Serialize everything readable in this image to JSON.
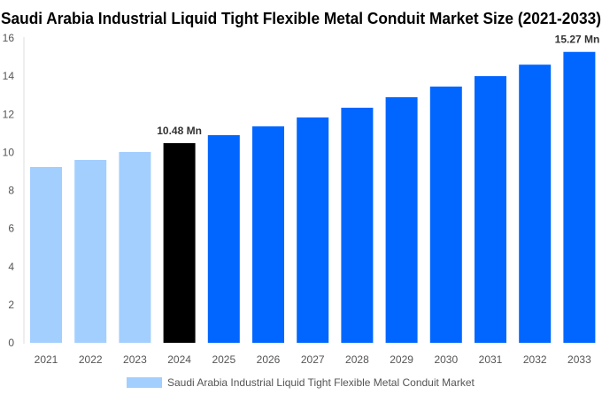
{
  "chart_data": {
    "type": "bar",
    "title": "Saudi Arabia Industrial Liquid Tight Flexible Metal Conduit Market Size (2021-2033)",
    "categories": [
      "2021",
      "2022",
      "2023",
      "2024",
      "2025",
      "2026",
      "2027",
      "2028",
      "2029",
      "2030",
      "2031",
      "2032",
      "2033"
    ],
    "values": [
      9.23,
      9.6,
      10.02,
      10.48,
      10.9,
      11.36,
      11.83,
      12.34,
      12.89,
      13.45,
      14.0,
      14.6,
      15.27
    ],
    "colors": [
      "#a3cfff",
      "#a3cfff",
      "#a3cfff",
      "#000000",
      "#0066ff",
      "#0066ff",
      "#0066ff",
      "#0066ff",
      "#0066ff",
      "#0066ff",
      "#0066ff",
      "#0066ff",
      "#0066ff"
    ],
    "data_labels": {
      "3": "10.48 Mn",
      "12": "15.27 Mn"
    },
    "ylim": [
      0,
      16
    ],
    "yticks": [
      0,
      2,
      4,
      6,
      8,
      10,
      12,
      14,
      16
    ],
    "grid": false,
    "legend": {
      "label": "Saudi Arabia Industrial Liquid Tight Flexible Metal Conduit Market",
      "color": "#a3cfff",
      "placement": "bottom"
    }
  }
}
